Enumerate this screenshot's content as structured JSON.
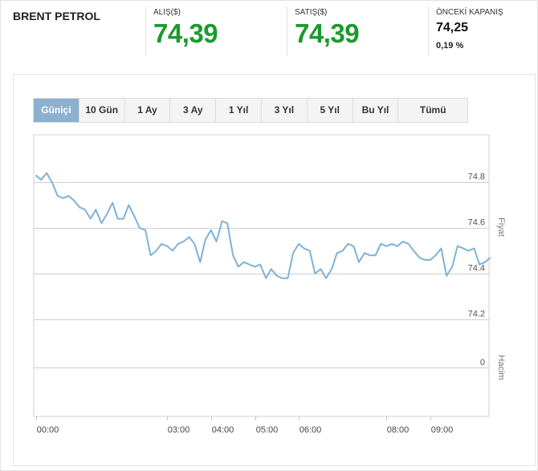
{
  "instrument": {
    "name": "BRENT PETROL"
  },
  "bid": {
    "label": "ALIŞ($)",
    "value": "74,39"
  },
  "ask": {
    "label": "SATIŞ($)",
    "value": "74,39"
  },
  "previous_close": {
    "label": "ÖNCEKİ KAPANIŞ",
    "value": "74,25",
    "change": "0,19 %"
  },
  "tabs": [
    {
      "label": "Güniçi",
      "active": true
    },
    {
      "label": "10 Gün"
    },
    {
      "label": "1 Ay"
    },
    {
      "label": "3 Ay"
    },
    {
      "label": "1 Yıl"
    },
    {
      "label": "3 Yıl"
    },
    {
      "label": "5 Yıl"
    },
    {
      "label": "Bu Yıl"
    },
    {
      "label": "Tümü"
    }
  ],
  "colors": {
    "accent_green": "#1a9a2c",
    "active_tab": "#8db0cf",
    "series_line": "#7fb2d9"
  },
  "chart_data": {
    "type": "line",
    "price_axis_label": "Fiyat",
    "volume_axis_label": "Hacim",
    "x_tick_labels": [
      "00:00",
      "03:00",
      "04:00",
      "05:00",
      "06:00",
      "08:00",
      "09:00"
    ],
    "x_tick_hours": [
      0,
      3,
      4,
      5,
      6,
      8,
      9
    ],
    "y_ticks": [
      74.2,
      74.4,
      74.6,
      74.8
    ],
    "y_tick_labels": [
      "74.2",
      "74.4",
      "74.6",
      "74.8"
    ],
    "ylim": [
      74.0,
      74.9
    ],
    "volume_ticks": [
      0
    ],
    "volume_tick_labels": [
      "0"
    ],
    "grid": true,
    "series": [
      {
        "values": [
          [
            0.0,
            74.83
          ],
          [
            0.12,
            74.81
          ],
          [
            0.25,
            74.84
          ],
          [
            0.37,
            74.8
          ],
          [
            0.5,
            74.74
          ],
          [
            0.62,
            74.73
          ],
          [
            0.75,
            74.74
          ],
          [
            0.87,
            74.72
          ],
          [
            1.0,
            74.69
          ],
          [
            1.12,
            74.68
          ],
          [
            1.25,
            74.64
          ],
          [
            1.37,
            74.68
          ],
          [
            1.5,
            74.62
          ],
          [
            1.62,
            74.66
          ],
          [
            1.75,
            74.71
          ],
          [
            1.87,
            74.64
          ],
          [
            2.0,
            74.64
          ],
          [
            2.12,
            74.7
          ],
          [
            2.25,
            74.65
          ],
          [
            2.37,
            74.6
          ],
          [
            2.5,
            74.59
          ],
          [
            2.62,
            74.48
          ],
          [
            2.75,
            74.5
          ],
          [
            2.87,
            74.53
          ],
          [
            3.0,
            74.52
          ],
          [
            3.12,
            74.5
          ],
          [
            3.25,
            74.53
          ],
          [
            3.37,
            74.54
          ],
          [
            3.5,
            74.56
          ],
          [
            3.62,
            74.53
          ],
          [
            3.75,
            74.45
          ],
          [
            3.87,
            74.55
          ],
          [
            4.0,
            74.59
          ],
          [
            4.12,
            74.54
          ],
          [
            4.25,
            74.63
          ],
          [
            4.37,
            74.62
          ],
          [
            4.5,
            74.48
          ],
          [
            4.62,
            74.43
          ],
          [
            4.75,
            74.45
          ],
          [
            4.87,
            74.44
          ],
          [
            5.0,
            74.43
          ],
          [
            5.12,
            74.44
          ],
          [
            5.25,
            74.38
          ],
          [
            5.37,
            74.42
          ],
          [
            5.5,
            74.39
          ],
          [
            5.62,
            74.38
          ],
          [
            5.75,
            74.38
          ],
          [
            5.87,
            74.49
          ],
          [
            6.0,
            74.53
          ],
          [
            6.12,
            74.51
          ],
          [
            6.25,
            74.5
          ],
          [
            6.37,
            74.4
          ],
          [
            6.5,
            74.42
          ],
          [
            6.62,
            74.38
          ],
          [
            6.75,
            74.42
          ],
          [
            6.87,
            74.49
          ],
          [
            7.0,
            74.5
          ],
          [
            7.12,
            74.53
          ],
          [
            7.25,
            74.52
          ],
          [
            7.37,
            74.45
          ],
          [
            7.5,
            74.49
          ],
          [
            7.62,
            74.48
          ],
          [
            7.75,
            74.48
          ],
          [
            7.87,
            74.53
          ],
          [
            8.0,
            74.52
          ],
          [
            8.12,
            74.53
          ],
          [
            8.25,
            74.52
          ],
          [
            8.37,
            74.54
          ],
          [
            8.5,
            74.53
          ],
          [
            8.62,
            74.5
          ],
          [
            8.75,
            74.47
          ],
          [
            8.87,
            74.46
          ],
          [
            9.0,
            74.46
          ],
          [
            9.12,
            74.48
          ],
          [
            9.25,
            74.51
          ],
          [
            9.37,
            74.39
          ],
          [
            9.5,
            74.43
          ],
          [
            9.62,
            74.52
          ],
          [
            9.75,
            74.51
          ],
          [
            9.87,
            74.5
          ],
          [
            10.0,
            74.51
          ],
          [
            10.12,
            74.44
          ],
          [
            10.25,
            74.45
          ],
          [
            10.37,
            74.47
          ]
        ]
      }
    ]
  }
}
